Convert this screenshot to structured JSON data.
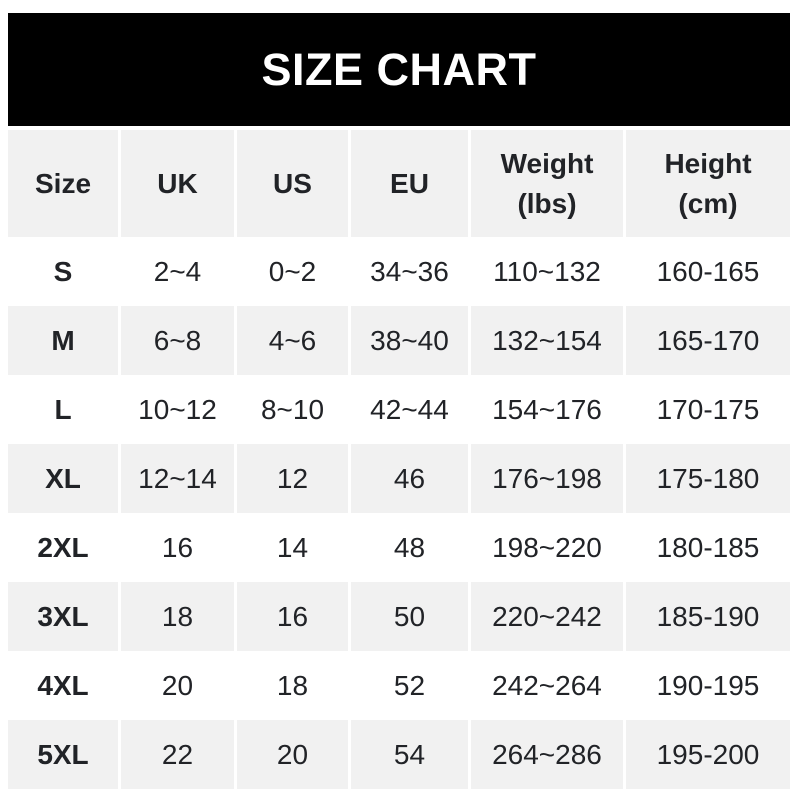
{
  "banner": {
    "title": "SIZE CHART"
  },
  "colors": {
    "banner_bg": "#000000",
    "banner_text": "#ffffff",
    "alt_row_bg": "#f1f1f1",
    "row_bg": "#ffffff",
    "text": "#212327"
  },
  "chart_data": {
    "type": "table",
    "title": "SIZE CHART",
    "columns": [
      "Size",
      "UK",
      "US",
      "EU",
      "Weight\n(lbs)",
      "Height\n(cm)"
    ],
    "rows": [
      [
        "S",
        "2~4",
        "0~2",
        "34~36",
        "110~132",
        "160-165"
      ],
      [
        "M",
        "6~8",
        "4~6",
        "38~40",
        "132~154",
        "165-170"
      ],
      [
        "L",
        "10~12",
        "8~10",
        "42~44",
        "154~176",
        "170-175"
      ],
      [
        "XL",
        "12~14",
        "12",
        "46",
        "176~198",
        "175-180"
      ],
      [
        "2XL",
        "16",
        "14",
        "48",
        "198~220",
        "180-185"
      ],
      [
        "3XL",
        "18",
        "16",
        "50",
        "220~242",
        "185-190"
      ],
      [
        "4XL",
        "20",
        "18",
        "52",
        "242~264",
        "190-195"
      ],
      [
        "5XL",
        "22",
        "20",
        "54",
        "264~286",
        "195-200"
      ]
    ],
    "layout": {
      "legend": "none",
      "grid": "off",
      "row_striping": "alternating gray starting at header and every second data row"
    }
  }
}
